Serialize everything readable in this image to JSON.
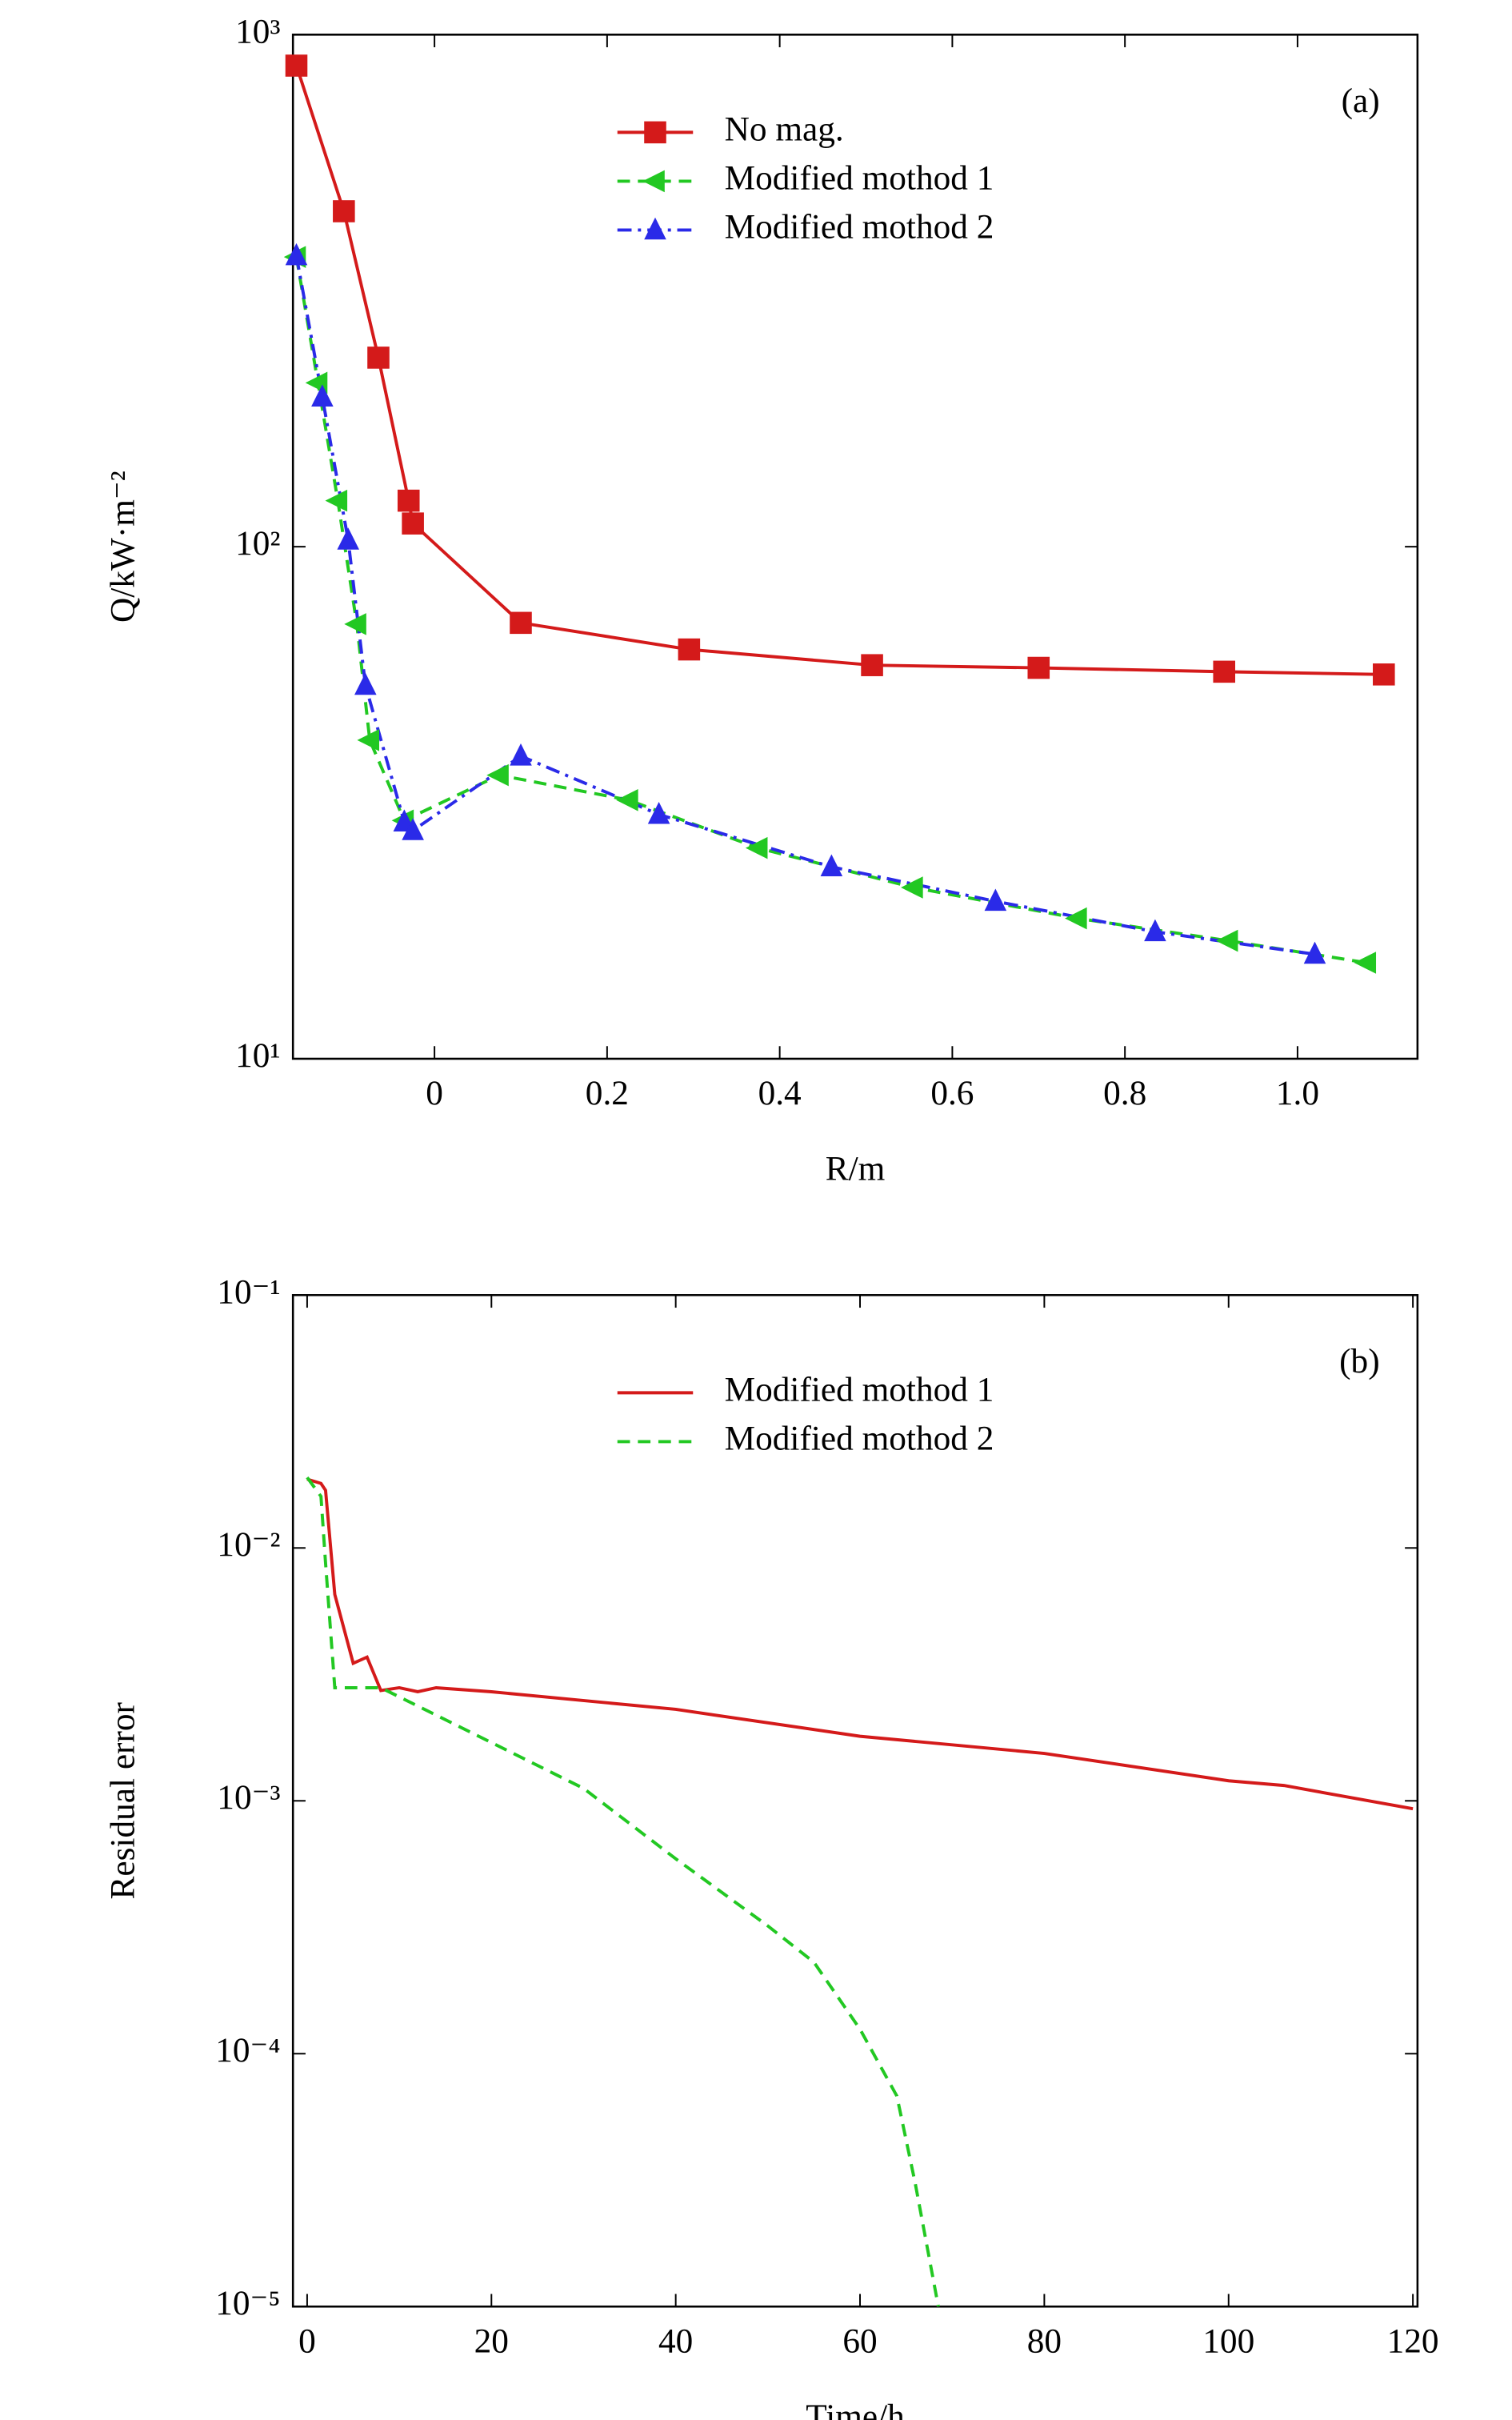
{
  "chart_data": [
    {
      "type": "line",
      "panel_label": "(a)",
      "x_label": "R/m",
      "y_label": "Q/kW·m⁻²",
      "xlim": [
        -0.164,
        1.139
      ],
      "ylim": [
        10,
        1000
      ],
      "y_scale": "log",
      "legend": "upper center",
      "xticks": [
        0,
        0.2,
        0.4,
        0.6,
        0.8,
        {
          "value": 1.0,
          "label": "1.0"
        }
      ],
      "yticks": [
        {
          "value": 10,
          "label": "10¹"
        },
        {
          "value": 100,
          "label": "10²"
        },
        {
          "value": 1000,
          "label": "10³"
        }
      ],
      "series": [
        {
          "name": "No mag.",
          "color": "#d41a1a",
          "dash": "solid",
          "marker": "square",
          "x": [
            -0.16,
            -0.105,
            -0.065,
            -0.03,
            -0.025,
            0.1,
            0.295,
            0.507,
            0.7,
            0.915,
            1.1
          ],
          "values": [
            870,
            452,
            234,
            123,
            111,
            71,
            63,
            58.7,
            58,
            57,
            56.3
          ]
        },
        {
          "name": "Modified mothod 1",
          "color": "#22c822",
          "dash": "dashed",
          "marker": "triangle-left",
          "x": [
            -0.16,
            -0.135,
            -0.112,
            -0.09,
            -0.075,
            -0.035,
            0.075,
            0.225,
            0.375,
            0.555,
            0.745,
            0.92,
            1.08
          ],
          "values": [
            368,
            209,
            123,
            70.6,
            41.9,
            29.2,
            35.8,
            32,
            25.8,
            21.6,
            18.8,
            17,
            15.4
          ]
        },
        {
          "name": "Modified mothod 2",
          "color": "#2a2ae8",
          "dash": "dashdot",
          "marker": "triangle-up",
          "x": [
            -0.16,
            -0.13,
            -0.1,
            -0.08,
            -0.035,
            -0.025,
            0.1,
            0.26,
            0.46,
            0.65,
            0.835,
            1.02
          ],
          "values": [
            370,
            196,
            103,
            53.6,
            29,
            27.9,
            39,
            30,
            23.7,
            20.3,
            17.7,
            16
          ]
        }
      ]
    },
    {
      "type": "line",
      "panel_label": "(b)",
      "x_label": "Time/h",
      "y_label": "Residual error",
      "xlim": [
        -1.54,
        120.5
      ],
      "ylim": [
        1e-05,
        0.1
      ],
      "y_scale": "log",
      "legend": "upper center",
      "xticks": [
        0,
        20,
        40,
        60,
        80,
        100,
        120
      ],
      "yticks": [
        {
          "value": 1e-05,
          "label": "10⁻⁵"
        },
        {
          "value": 0.0001,
          "label": "10⁻⁴"
        },
        {
          "value": 0.001,
          "label": "10⁻³"
        },
        {
          "value": 0.01,
          "label": "10⁻²"
        },
        {
          "value": 0.1,
          "label": "10⁻¹"
        }
      ],
      "series": [
        {
          "name": "Modified mothod 1",
          "color": "#d41a1a",
          "dash": "solid",
          "x": [
            0,
            1.5,
            2,
            3,
            5,
            6.5,
            8,
            10,
            12,
            14,
            20,
            40,
            60,
            80,
            100,
            106,
            120
          ],
          "values": [
            0.0187,
            0.018,
            0.0169,
            0.00655,
            0.0035,
            0.0037,
            0.00273,
            0.0028,
            0.0027,
            0.0028,
            0.0027,
            0.0023,
            0.0018,
            0.00154,
            0.0012,
            0.00115,
            0.00093
          ]
        },
        {
          "name": "Modified mothod 2",
          "color": "#22c822",
          "dash": "dashed",
          "x": [
            0,
            1.5,
            2,
            3,
            8,
            20,
            30,
            40,
            50,
            55,
            60,
            64,
            66,
            68.5
          ],
          "values": [
            0.019,
            0.016,
            0.0087,
            0.0028,
            0.0028,
            0.0017,
            0.00112,
            0.00059,
            0.00032,
            0.00023,
            0.000125,
            6.8e-05,
            3.06e-05,
            1e-05
          ]
        }
      ]
    }
  ]
}
